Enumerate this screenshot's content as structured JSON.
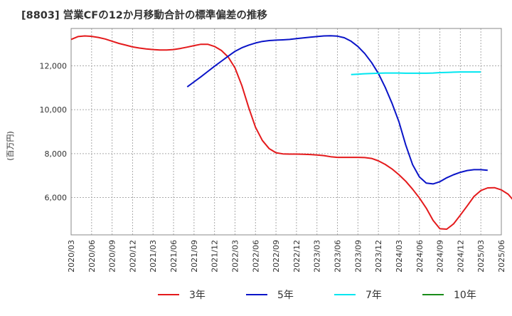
{
  "chart_data": {
    "type": "line",
    "title": "[8803]  営業CFの12か月移動合計の標準偏差の推移",
    "ylabel": "(百万円)",
    "xlabel": "",
    "ylim": [
      4300,
      13700
    ],
    "yticks": [
      6000,
      8000,
      10000,
      12000
    ],
    "ytick_labels": [
      "6,000",
      "8,000",
      "10,000",
      "12,000"
    ],
    "x_start": "2020-03",
    "x_end": "2025-06",
    "xtick_labels": [
      "2020/03",
      "2020/06",
      "2020/09",
      "2020/12",
      "2021/03",
      "2021/06",
      "2021/09",
      "2021/12",
      "2022/03",
      "2022/06",
      "2022/09",
      "2022/12",
      "2023/03",
      "2023/06",
      "2023/09",
      "2023/12",
      "2024/03",
      "2024/06",
      "2024/09",
      "2024/12",
      "2025/03",
      "2025/06"
    ],
    "grid": true,
    "legend_position": "bottom",
    "series": [
      {
        "name": "3年",
        "color": "#e41a1c",
        "start": "2020-03",
        "values": [
          13200,
          13330,
          13360,
          13340,
          13290,
          13220,
          13120,
          13020,
          12940,
          12860,
          12810,
          12770,
          12740,
          12720,
          12720,
          12740,
          12790,
          12850,
          12920,
          12980,
          12980,
          12880,
          12700,
          12400,
          11900,
          11100,
          10100,
          9200,
          8600,
          8230,
          8040,
          7990,
          7980,
          7980,
          7970,
          7960,
          7940,
          7910,
          7860,
          7830,
          7830,
          7830,
          7830,
          7820,
          7780,
          7670,
          7510,
          7300,
          7040,
          6740,
          6380,
          5980,
          5520,
          4960,
          4580,
          4560,
          4800,
          5200,
          5620,
          6050,
          6320,
          6440,
          6450,
          6350,
          6150,
          5790
        ]
      },
      {
        "name": "5年",
        "color": "#0a14c8",
        "start": "2021-08",
        "values": [
          11040,
          11270,
          11500,
          11740,
          11980,
          12210,
          12440,
          12660,
          12820,
          12940,
          13040,
          13110,
          13150,
          13170,
          13180,
          13200,
          13240,
          13270,
          13300,
          13330,
          13360,
          13370,
          13350,
          13280,
          13120,
          12880,
          12560,
          12150,
          11650,
          11020,
          10290,
          9450,
          8390,
          7500,
          6940,
          6660,
          6620,
          6720,
          6900,
          7040,
          7150,
          7230,
          7270,
          7270,
          7240
        ]
      },
      {
        "name": "7年",
        "color": "#00e6f0",
        "start": "2023-08",
        "values": [
          11600,
          11620,
          11640,
          11650,
          11660,
          11670,
          11670,
          11670,
          11660,
          11660,
          11660,
          11660,
          11670,
          11690,
          11700,
          11710,
          11720,
          11720,
          11720,
          11720
        ]
      },
      {
        "name": "10年",
        "color": "#1a8c1a",
        "start": "2025-03",
        "values": []
      }
    ]
  }
}
